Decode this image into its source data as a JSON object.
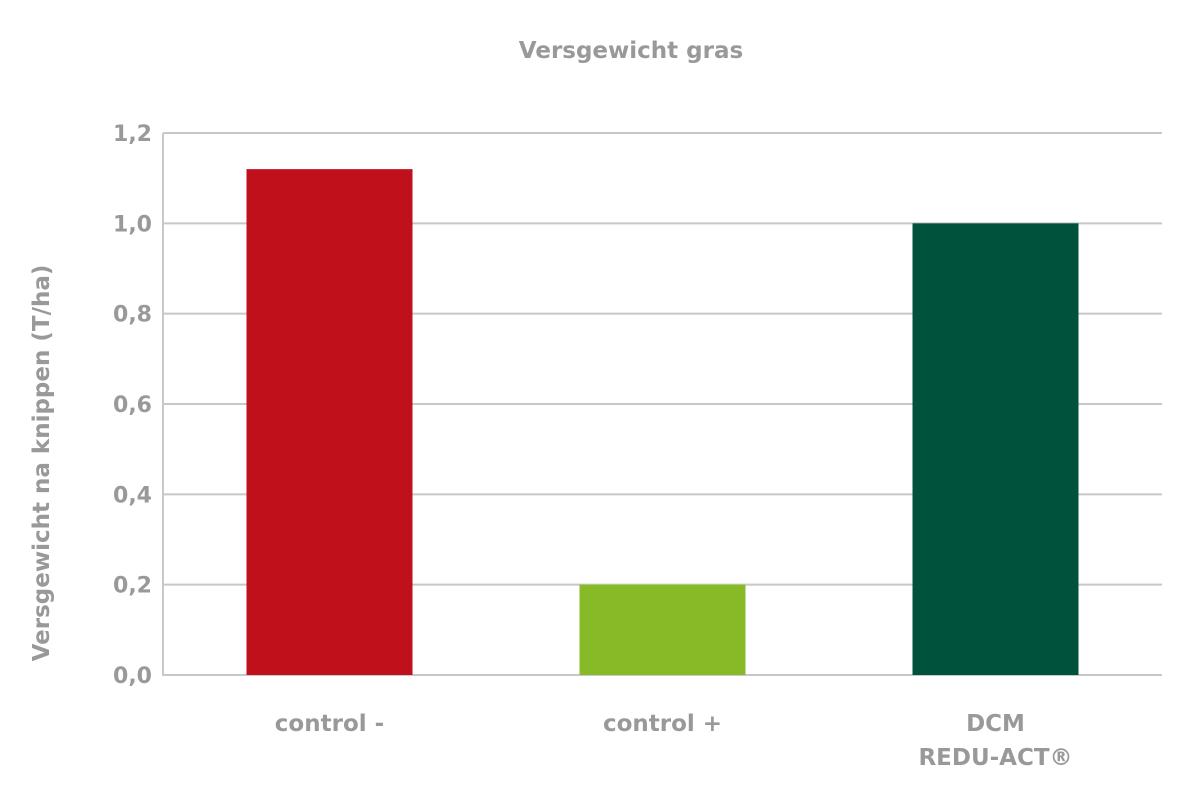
{
  "chart_data": {
    "type": "bar",
    "title": "Versgewicht gras",
    "ylabel": "Versgewicht na knippen (T/ha)",
    "xlabel": "",
    "categories": [
      [
        "control -"
      ],
      [
        "control +"
      ],
      [
        "DCM",
        "REDU-ACT®"
      ]
    ],
    "values": [
      1.12,
      0.2,
      1.0
    ],
    "colors": [
      "#c0101c",
      "#86ba26",
      "#00523d"
    ],
    "ylim": [
      0,
      1.2
    ],
    "yticks": [
      {
        "value": 0.0,
        "label": "0,0"
      },
      {
        "value": 0.2,
        "label": "0,2"
      },
      {
        "value": 0.4,
        "label": "0,4"
      },
      {
        "value": 0.6,
        "label": "0,6"
      },
      {
        "value": 0.8,
        "label": "0,8"
      },
      {
        "value": 1.0,
        "label": "1,0"
      },
      {
        "value": 1.2,
        "label": "1,2"
      }
    ],
    "grid": true,
    "legend": "none"
  }
}
